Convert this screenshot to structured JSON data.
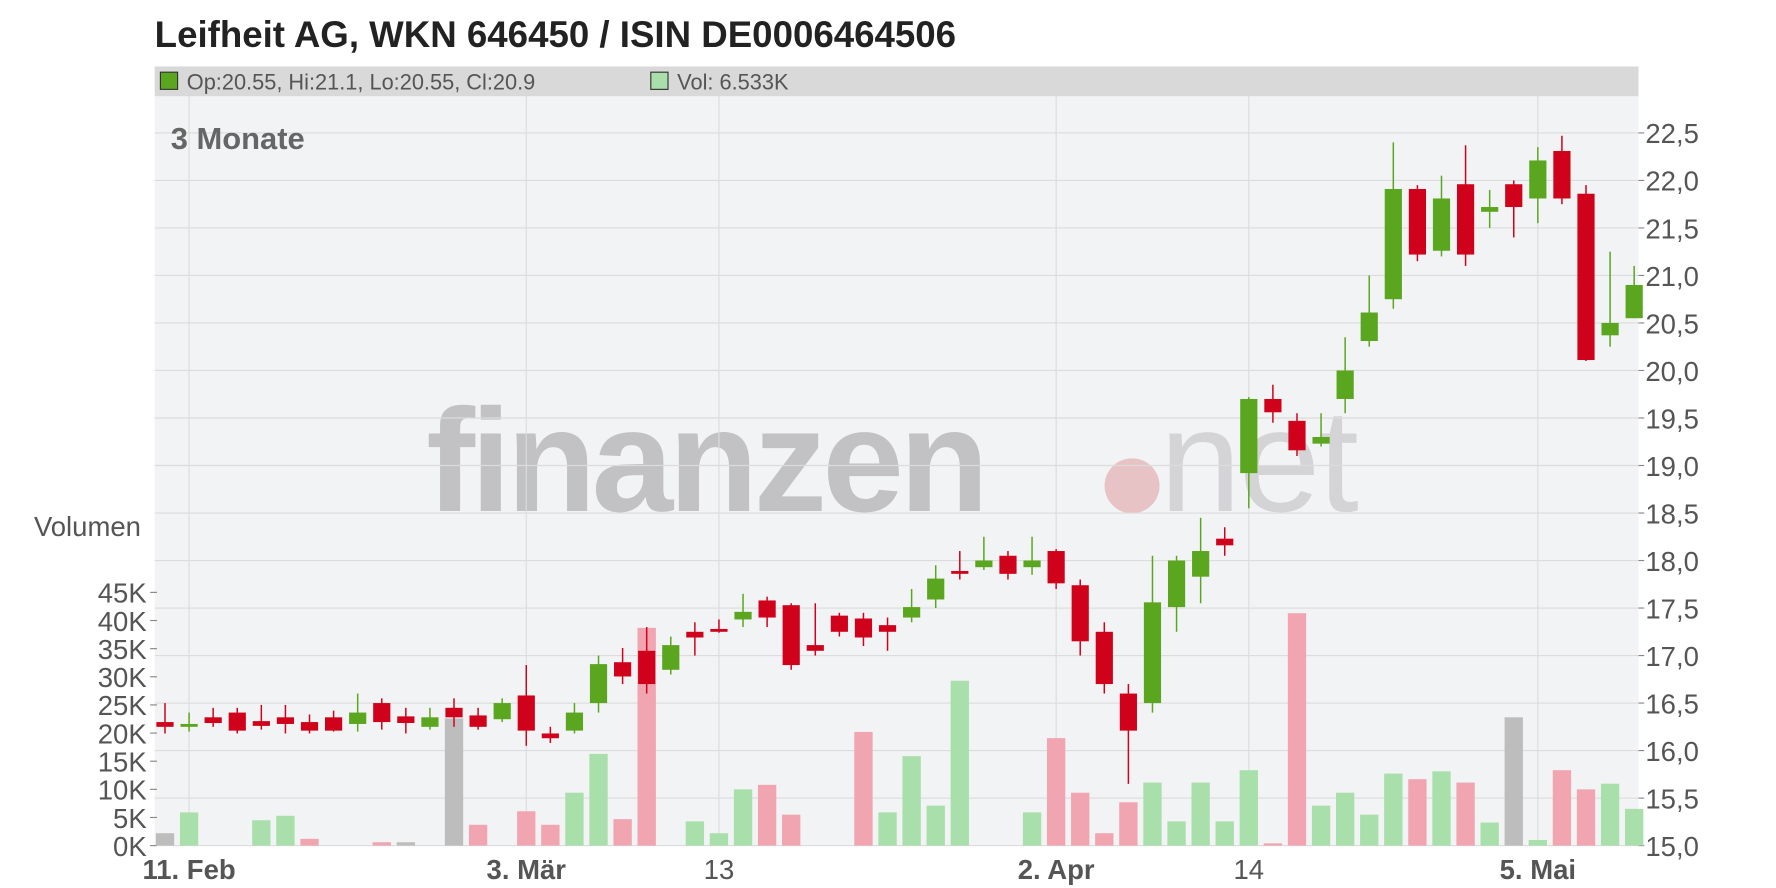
{
  "chart_data": {
    "type": "candlestick",
    "title": "Leifheit AG, WKN 646450 / ISIN DE0006464506",
    "period": "3 Monate",
    "volume_axis_title": "Volumen",
    "legend": {
      "price": "Op:20.55, Hi:21.1, Lo:20.55, Cl:20.9",
      "volume": "Vol: 6.533K"
    },
    "watermark": {
      "brand": "finanzen",
      "suffix": "net"
    },
    "up_color": "#5aa61e",
    "down_color": "#d0021b",
    "volume_legend_color": "#a9dfaa",
    "categories": [
      null,
      "11. Feb",
      null,
      null,
      null,
      null,
      null,
      null,
      null,
      null,
      null,
      null,
      null,
      null,
      null,
      "3. Mär",
      null,
      null,
      null,
      null,
      null,
      null,
      null,
      "13",
      null,
      null,
      null,
      null,
      null,
      null,
      null,
      null,
      null,
      null,
      null,
      null,
      null,
      "2. Apr",
      null,
      null,
      null,
      null,
      null,
      null,
      null,
      "14",
      null,
      null,
      null,
      null,
      null,
      null,
      null,
      null,
      null,
      null,
      null,
      "5. Mai",
      null,
      null,
      null,
      null
    ],
    "open": [
      16.3,
      16.25,
      16.35,
      16.4,
      16.31,
      16.35,
      16.3,
      16.35,
      16.28,
      16.5,
      16.36,
      16.25,
      16.45,
      16.37,
      16.33,
      16.58,
      16.18,
      16.21,
      16.5,
      16.93,
      17.05,
      16.85,
      17.25,
      17.28,
      17.38,
      17.58,
      17.53,
      17.11,
      17.42,
      17.39,
      17.32,
      17.4,
      17.59,
      17.89,
      17.93,
      18.05,
      17.93,
      18.1,
      17.74,
      17.25,
      16.6,
      16.5,
      17.51,
      17.83,
      18.23,
      18.92,
      19.7,
      19.47,
      19.23,
      19.7,
      20.31,
      20.75,
      21.91,
      21.26,
      21.96,
      21.67,
      21.96,
      21.81,
      22.31,
      21.86,
      20.37,
      20.55
    ],
    "high": [
      16.5,
      16.4,
      16.45,
      16.45,
      16.48,
      16.48,
      16.38,
      16.42,
      16.6,
      16.55,
      16.45,
      16.45,
      16.55,
      16.45,
      16.55,
      16.9,
      16.25,
      16.5,
      17.0,
      17.08,
      17.3,
      17.2,
      17.35,
      17.38,
      17.65,
      17.62,
      17.55,
      17.55,
      17.45,
      17.45,
      17.4,
      17.7,
      17.95,
      18.1,
      18.25,
      18.1,
      18.25,
      18.12,
      17.8,
      17.35,
      16.7,
      18.05,
      18.05,
      18.45,
      18.35,
      19.72,
      19.85,
      19.55,
      19.55,
      20.35,
      21.0,
      22.4,
      21.95,
      22.05,
      22.37,
      21.9,
      22.0,
      22.35,
      22.47,
      21.95,
      21.25,
      21.1
    ],
    "low": [
      16.18,
      16.2,
      16.25,
      16.18,
      16.22,
      16.18,
      16.18,
      16.2,
      16.2,
      16.22,
      16.18,
      16.22,
      16.25,
      16.22,
      16.3,
      16.05,
      16.08,
      16.18,
      16.4,
      16.7,
      16.6,
      16.8,
      17.0,
      17.24,
      17.3,
      17.3,
      16.85,
      17.0,
      17.2,
      17.1,
      17.05,
      17.35,
      17.5,
      17.8,
      17.9,
      17.8,
      17.85,
      17.7,
      17.0,
      16.6,
      15.65,
      16.4,
      17.25,
      17.55,
      18.05,
      18.55,
      19.45,
      19.1,
      19.2,
      19.55,
      20.25,
      20.65,
      21.15,
      21.2,
      21.1,
      21.5,
      21.4,
      21.55,
      21.75,
      20.1,
      20.25,
      20.55
    ],
    "close": [
      16.25,
      16.28,
      16.29,
      16.21,
      16.26,
      16.28,
      16.21,
      16.21,
      16.4,
      16.3,
      16.29,
      16.35,
      16.35,
      16.25,
      16.5,
      16.21,
      16.13,
      16.4,
      16.91,
      16.78,
      16.7,
      17.11,
      17.19,
      17.25,
      17.46,
      17.4,
      16.9,
      17.05,
      17.25,
      17.19,
      17.25,
      17.51,
      17.81,
      17.86,
      18.0,
      17.86,
      18.0,
      17.76,
      17.15,
      16.7,
      16.21,
      17.56,
      18.0,
      18.1,
      18.16,
      19.7,
      19.56,
      19.16,
      19.3,
      20.0,
      20.61,
      21.91,
      21.22,
      21.81,
      21.22,
      21.72,
      21.72,
      22.21,
      21.81,
      20.11,
      20.5,
      20.9
    ],
    "volume": [
      2.2,
      5.9,
      0,
      0,
      4.5,
      5.3,
      1.2,
      0,
      0,
      0.6,
      0.6,
      0,
      22.6,
      3.7,
      0,
      6.1,
      3.7,
      9.4,
      16.3,
      4.7,
      38.7,
      0,
      4.3,
      2.2,
      10.0,
      10.8,
      5.5,
      0,
      0,
      20.2,
      5.9,
      15.9,
      7.1,
      29.3,
      0,
      0,
      5.9,
      19.1,
      9.4,
      2.2,
      7.7,
      11.2,
      4.3,
      11.2,
      4.3,
      13.4,
      0.4,
      41.3,
      7.1,
      9.4,
      5.5,
      12.8,
      11.8,
      13.2,
      11.2,
      4.1,
      22.8,
      1.0,
      13.4,
      10.0,
      11.0,
      6.533
    ],
    "volume_colors": [
      "#bdbdbd",
      "#a9dfaa",
      "#f0a5b0",
      "#f0a5b0",
      "#a9dfaa",
      "#a9dfaa",
      "#f0a5b0",
      "#f0a5b0",
      "#a9dfaa",
      "#f0a5b0",
      "#bdbdbd",
      "#a9dfaa",
      "#bdbdbd",
      "#f0a5b0",
      "#a9dfaa",
      "#f0a5b0",
      "#f0a5b0",
      "#a9dfaa",
      "#a9dfaa",
      "#f0a5b0",
      "#f0a5b0",
      "#a9dfaa",
      "#a9dfaa",
      "#a9dfaa",
      "#a9dfaa",
      "#f0a5b0",
      "#f0a5b0",
      "#f0a5b0",
      "#f0a5b0",
      "#f0a5b0",
      "#a9dfaa",
      "#a9dfaa",
      "#a9dfaa",
      "#a9dfaa",
      "#a9dfaa",
      "#f0a5b0",
      "#a9dfaa",
      "#f0a5b0",
      "#f0a5b0",
      "#f0a5b0",
      "#f0a5b0",
      "#a9dfaa",
      "#a9dfaa",
      "#a9dfaa",
      "#a9dfaa",
      "#a9dfaa",
      "#f0a5b0",
      "#f0a5b0",
      "#a9dfaa",
      "#a9dfaa",
      "#a9dfaa",
      "#a9dfaa",
      "#f0a5b0",
      "#a9dfaa",
      "#f0a5b0",
      "#a9dfaa",
      "#bdbdbd",
      "#a9dfaa",
      "#f0a5b0",
      "#f0a5b0",
      "#a9dfaa",
      "#a9dfaa"
    ],
    "ylim": [
      15,
      22.5
    ],
    "yticks": [
      {
        "value": 15,
        "label": "15,0"
      },
      {
        "value": 15.5,
        "label": "15,5"
      },
      {
        "value": 16,
        "label": "16,0"
      },
      {
        "value": 16.5,
        "label": "16,5"
      },
      {
        "value": 17,
        "label": "17,0"
      },
      {
        "value": 17.5,
        "label": "17,5"
      },
      {
        "value": 18,
        "label": "18,0"
      },
      {
        "value": 18.5,
        "label": "18,5"
      },
      {
        "value": 19,
        "label": "19,0"
      },
      {
        "value": 19.5,
        "label": "19,5"
      },
      {
        "value": 20,
        "label": "20,0"
      },
      {
        "value": 20.5,
        "label": "20,5"
      },
      {
        "value": 21,
        "label": "21,0"
      },
      {
        "value": 21.5,
        "label": "21,5"
      },
      {
        "value": 22,
        "label": "22,0"
      },
      {
        "value": 22.5,
        "label": "22,5"
      }
    ],
    "y2lim": [
      0,
      45
    ],
    "y2ticks": [
      {
        "value": 0,
        "label": "0K"
      },
      {
        "value": 5,
        "label": "5K"
      },
      {
        "value": 10,
        "label": "10K"
      },
      {
        "value": 15,
        "label": "15K"
      },
      {
        "value": 20,
        "label": "20K"
      },
      {
        "value": 25,
        "label": "25K"
      },
      {
        "value": 30,
        "label": "30K"
      },
      {
        "value": 35,
        "label": "35K"
      },
      {
        "value": 40,
        "label": "40K"
      },
      {
        "value": 45,
        "label": "45K"
      }
    ],
    "grid": true
  }
}
